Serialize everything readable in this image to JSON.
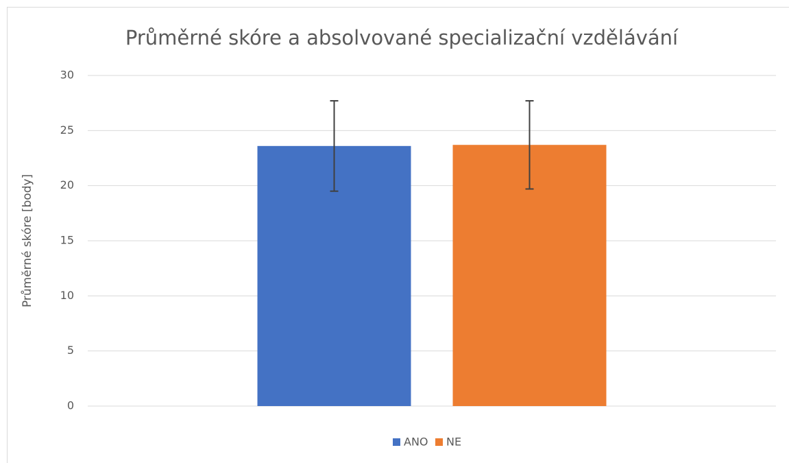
{
  "chart_data": {
    "type": "bar",
    "title": "Průměrné skóre a absolvované specializační vzdělávání",
    "y_label": "Průměrné skóre [body]",
    "categories": [
      null
    ],
    "series": [
      {
        "name": "ANO",
        "color": "#4472c4",
        "values": [
          23.6
        ],
        "errors": [
          4.1
        ]
      },
      {
        "name": "NE",
        "color": "#ed7d31",
        "values": [
          23.7
        ],
        "errors": [
          4.0
        ]
      }
    ],
    "ylim": [
      0,
      30
    ],
    "yticks": [
      0,
      5,
      10,
      15,
      20,
      25,
      30
    ],
    "grid": true,
    "legend": "bottom"
  }
}
